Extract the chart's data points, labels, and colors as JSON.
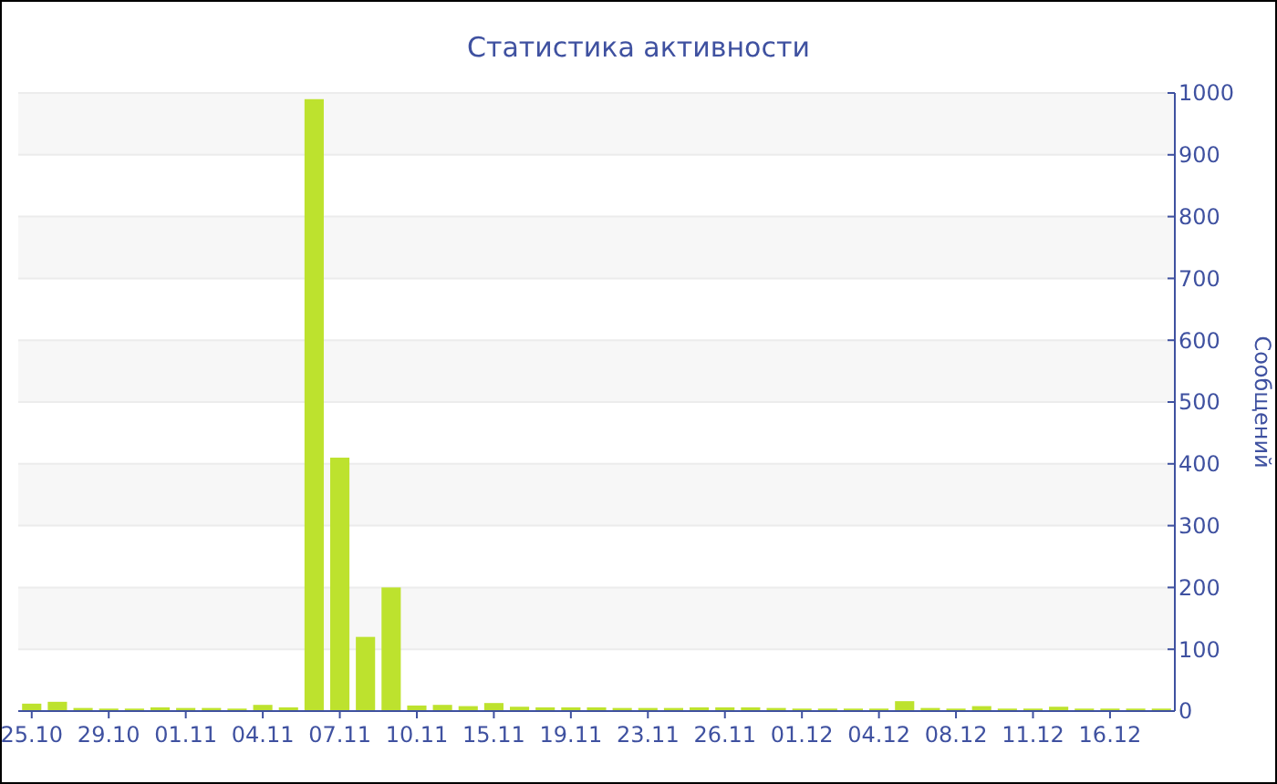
{
  "chart_data": {
    "type": "bar",
    "title": "Статистика активности",
    "ylabel": "Сообщений",
    "categories": [
      "25.10",
      null,
      null,
      "29.10",
      null,
      null,
      "01.11",
      null,
      null,
      "04.11",
      null,
      null,
      "07.11",
      null,
      null,
      "10.11",
      null,
      null,
      "15.11",
      null,
      null,
      "19.11",
      null,
      null,
      "23.11",
      null,
      null,
      "26.11",
      null,
      null,
      "01.12",
      null,
      null,
      "04.12",
      null,
      null,
      "08.12",
      null,
      null,
      "11.12",
      null,
      null,
      "16.12",
      null,
      null
    ],
    "values": [
      12,
      15,
      5,
      4,
      4,
      6,
      5,
      5,
      4,
      10,
      6,
      990,
      410,
      120,
      200,
      9,
      10,
      8,
      13,
      7,
      6,
      6,
      6,
      5,
      5,
      5,
      6,
      6,
      6,
      5,
      4,
      4,
      4,
      4,
      16,
      5,
      4,
      8,
      4,
      4,
      7,
      4,
      4,
      4,
      4
    ],
    "color": "#bde22e",
    "ylim": [
      0,
      1000
    ],
    "yticks": [
      0,
      100,
      200,
      300,
      400,
      500,
      600,
      700,
      800,
      900,
      1000
    ],
    "grid": "y"
  }
}
